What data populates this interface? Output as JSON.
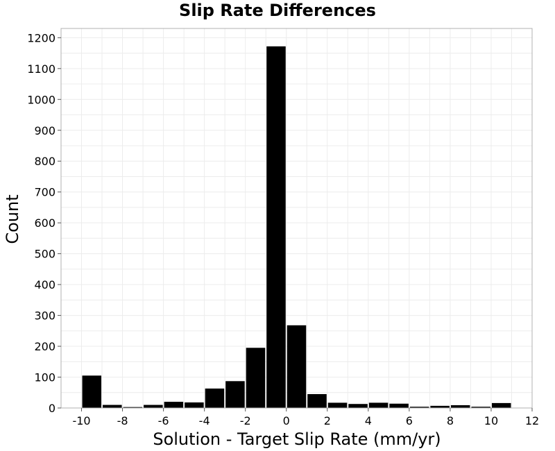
{
  "chart_data": {
    "type": "bar",
    "title": "Slip Rate Differences",
    "xlabel": "Solution - Target Slip Rate (mm/yr)",
    "ylabel": "Count",
    "xlim": [
      -11,
      12
    ],
    "ylim": [
      0,
      1230
    ],
    "x_ticks": [
      -10,
      -8,
      -6,
      -4,
      -2,
      0,
      2,
      4,
      6,
      8,
      10,
      12
    ],
    "y_ticks": [
      0,
      100,
      200,
      300,
      400,
      500,
      600,
      700,
      800,
      900,
      1000,
      1100,
      1200
    ],
    "bin_width": 1,
    "grid": true,
    "x": [
      -9.5,
      -8.5,
      -7.5,
      -6.5,
      -5.5,
      -4.5,
      -3.5,
      -2.5,
      -1.5,
      -0.5,
      0.5,
      1.5,
      2.5,
      3.5,
      4.5,
      5.5,
      6.5,
      7.5,
      8.5,
      9.5,
      10.5
    ],
    "values": [
      105,
      10,
      3,
      10,
      20,
      18,
      63,
      87,
      195,
      1172,
      268,
      45,
      17,
      13,
      17,
      14,
      4,
      7,
      9,
      4,
      16
    ],
    "colors": {
      "bar": "#000000",
      "grid": "#ececec",
      "frame": "#b0b0b0"
    }
  }
}
